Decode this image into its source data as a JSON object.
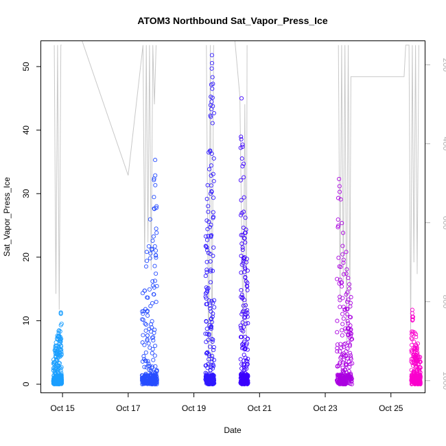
{
  "chart_data": {
    "type": "scatter",
    "title": "ATOM3 Northbound Sat_Vapor_Press_Ice",
    "xlabel": "Date",
    "ylabel": "Sat_Vapor_Press_Ice",
    "x_ticks": [
      "Oct 15",
      "Oct 17",
      "Oct 19",
      "Oct 21",
      "Oct 23",
      "Oct 25"
    ],
    "x_tick_days": [
      15,
      17,
      19,
      21,
      23,
      25
    ],
    "xlim_days": [
      14.35,
      26.05
    ],
    "ylim": [
      -1.3,
      54
    ],
    "y_ticks": [
      0,
      10,
      20,
      30,
      40,
      50
    ],
    "right_axis": {
      "ticks": [
        200,
        400,
        600,
        800,
        1000
      ],
      "lim": [
        1030,
        140
      ],
      "color": "#b3b3b3"
    },
    "grid": false,
    "legend": "none",
    "colors": {
      "scatter_start": "#1aa3ff",
      "scatter_end": "#ff00cc",
      "pressure_line": "#c8c8c8"
    },
    "flights": [
      {
        "start": 14.72,
        "end": 14.98,
        "peak_time": 14.95,
        "peak": 11.3
      },
      {
        "start": 17.42,
        "end": 17.88,
        "peak_time": 17.82,
        "peak": 35.3
      },
      {
        "start": 19.35,
        "end": 19.62,
        "peak_time": 19.55,
        "peak": 51.8
      },
      {
        "start": 20.42,
        "end": 20.65,
        "peak_time": 20.45,
        "peak": 45.0
      },
      {
        "start": 23.35,
        "end": 23.82,
        "peak_time": 23.42,
        "peak": 32.3
      },
      {
        "start": 25.62,
        "end": 25.9,
        "peak_time": 25.65,
        "peak": 11.7
      }
    ],
    "pressure_series": [
      {
        "flight": 1,
        "x": [
          14.75,
          14.78,
          14.8,
          14.85,
          14.9,
          14.95,
          14.97
        ],
        "y": [
          150,
          560,
          780,
          150,
          820,
          150,
          150
        ]
      },
      {
        "flight": 2,
        "x": [
          15.6,
          17.0,
          17.45,
          17.5,
          17.55,
          17.6,
          17.65,
          17.7,
          17.75,
          17.8,
          17.85
        ],
        "y": [
          140,
          480,
          150,
          700,
          150,
          650,
          150,
          720,
          150,
          300,
          150
        ]
      },
      {
        "flight": 3,
        "x": [
          19.38,
          19.45,
          19.5,
          19.55,
          19.6
        ],
        "y": [
          150,
          1000,
          150,
          1000,
          150
        ]
      },
      {
        "flight": 4,
        "x": [
          20.25,
          20.4,
          20.45,
          20.5,
          20.55,
          20.6,
          20.62
        ],
        "y": [
          140,
          280,
          600,
          900,
          300,
          900,
          150
        ]
      },
      {
        "flight": 5,
        "x": [
          23.4,
          23.45,
          23.5,
          23.55,
          23.6,
          23.65,
          23.7,
          23.75,
          23.78,
          25.4,
          25.45,
          25.55,
          25.6,
          25.65,
          25.7,
          25.75,
          25.8,
          25.85
        ],
        "y": [
          150,
          800,
          150,
          750,
          150,
          900,
          150,
          820,
          230,
          230,
          150,
          150,
          880,
          150,
          700,
          150,
          730,
          150
        ]
      }
    ]
  }
}
